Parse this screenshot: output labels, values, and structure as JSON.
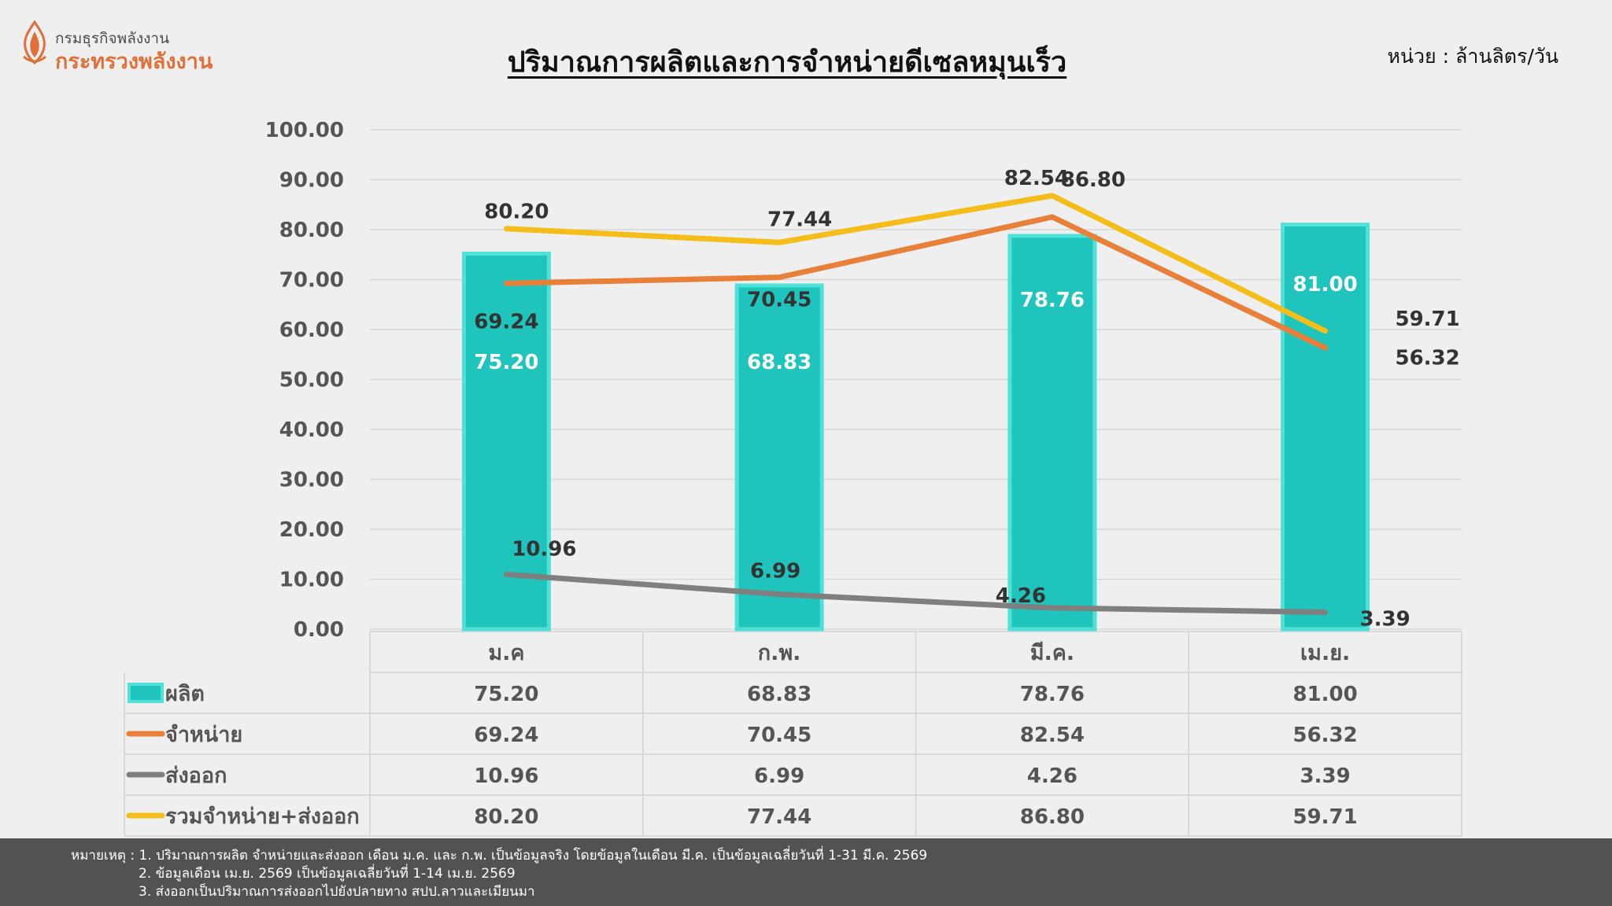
{
  "header": {
    "logo_line1": "กรมธุรกิจพลังงาน",
    "logo_line2": "กระทรวงพลังงาน",
    "title": "ปริมาณการผลิตและการจำหน่ายดีเซลหมุนเร็ว",
    "unit": "หน่วย : ล้านลิตร/วัน"
  },
  "chart_data": {
    "type": "bar",
    "categories": [
      "ม.ค",
      "ก.พ.",
      "มี.ค.",
      "เม.ย."
    ],
    "ylim": [
      0,
      100
    ],
    "yticks": [
      "0.00",
      "10.00",
      "20.00",
      "30.00",
      "40.00",
      "50.00",
      "60.00",
      "70.00",
      "80.00",
      "90.00",
      "100.00"
    ],
    "grid": true,
    "legend": "data-table",
    "series": [
      {
        "name": "ผลิต",
        "kind": "bar",
        "color": "#1fc4bd",
        "values": [
          75.2,
          68.83,
          78.76,
          81.0
        ],
        "labels": [
          "75.20",
          "68.83",
          "78.76",
          "81.00"
        ]
      },
      {
        "name": "จำหน่าย",
        "kind": "line",
        "color": "#e8803a",
        "values": [
          69.24,
          70.45,
          82.54,
          56.32
        ],
        "labels": [
          "69.24",
          "70.45",
          "82.54",
          "56.32"
        ]
      },
      {
        "name": "ส่งออก",
        "kind": "line",
        "color": "#7f7f7f",
        "values": [
          10.96,
          6.99,
          4.26,
          3.39
        ],
        "labels": [
          "10.96",
          "6.99",
          "4.26",
          "3.39"
        ]
      },
      {
        "name": "รวมจำหน่าย+ส่งออก",
        "kind": "line",
        "color": "#f4bd1a",
        "values": [
          80.2,
          77.44,
          86.8,
          59.71
        ],
        "labels": [
          "80.20",
          "77.44",
          "86.80",
          "59.71"
        ]
      }
    ]
  },
  "footer": {
    "notes": [
      "หมายเหตุ : 1. ปริมาณการผลิต จำหน่ายและส่งออก เดือน ม.ค. และ ก.พ. เป็นข้อมูลจริง โดยข้อมูลในเดือน มี.ค. เป็นข้อมูลเฉลี่ยวันที่ 1-31 มี.ค. 2569",
      "2. ข้อมูลเดือน เม.ย. 2569 เป็นข้อมูลเฉลี่ยวันที่ 1-14 เม.ย. 2569",
      "3. ส่งออกเป็นปริมาณการส่งออกไปยังปลายทาง สปป.ลาวและเมียนมา"
    ]
  }
}
